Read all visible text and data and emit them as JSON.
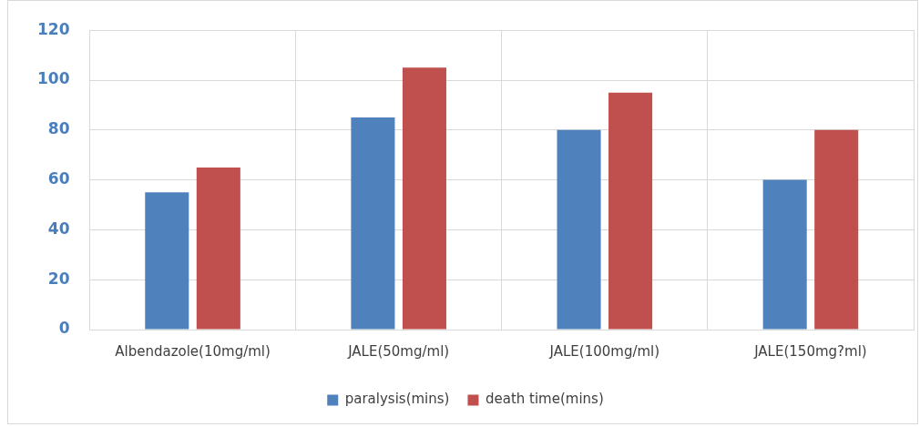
{
  "chart_data": {
    "type": "bar",
    "categories": [
      "Albendazole(10mg/ml)",
      "JALE(50mg/ml)",
      "JALE(100mg/ml)",
      "JALE(150mg?ml)"
    ],
    "series": [
      {
        "name": "paralysis(mins)",
        "color": "#4f81bd",
        "values": [
          55,
          85,
          80,
          60
        ]
      },
      {
        "name": "death time(mins)",
        "color": "#c0504d",
        "values": [
          65,
          105,
          95,
          80
        ]
      }
    ],
    "ylim": [
      0,
      120
    ],
    "yticks": [
      0,
      20,
      40,
      60,
      80,
      100,
      120
    ],
    "grid": true,
    "legend": "bottom"
  }
}
